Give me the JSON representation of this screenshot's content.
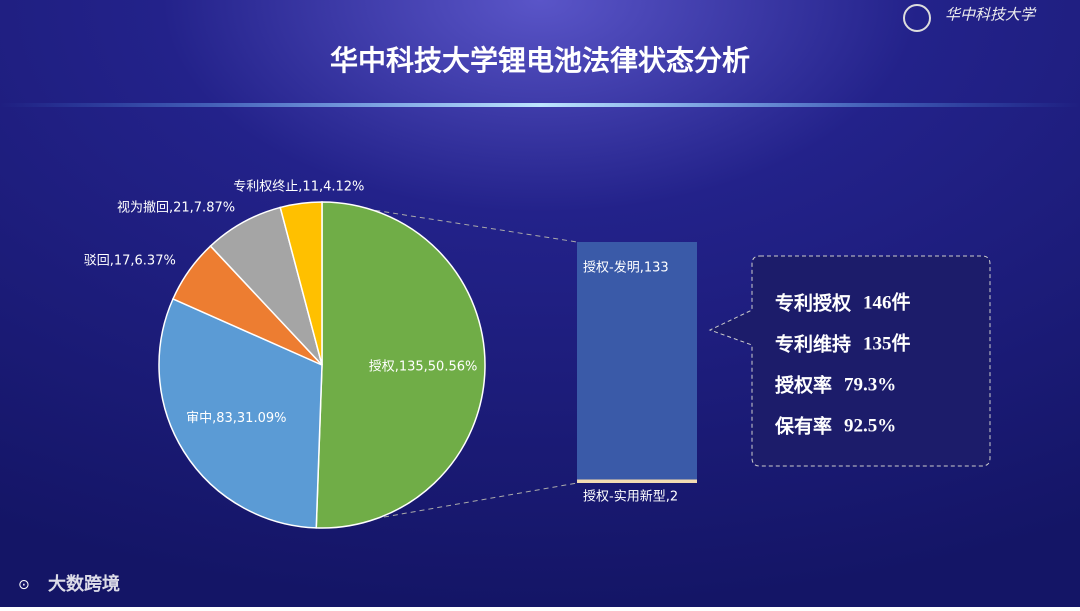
{
  "title": "华中科技大学锂电池法律状态分析",
  "logo": "华中科技大学",
  "watermark": "大数跨境",
  "chart_data": [
    {
      "type": "pie",
      "categories": [
        "授权",
        "审中",
        "驳回",
        "视为撤回",
        "专利权终止"
      ],
      "values": [
        135,
        83,
        17,
        21,
        11
      ],
      "value_labels": [
        "授权,135,50.56%",
        "审中,83,31.09%",
        "驳回,17,6.37%",
        "视为撤回,21,7.87%",
        "专利权终止,11,4.12%"
      ],
      "colors": [
        "#70ad47",
        "#5b9bd5",
        "#ed7d31",
        "#a5a5a5",
        "#ffc000"
      ]
    },
    {
      "type": "bar",
      "categories": [
        "授权-发明",
        "授权-实用新型"
      ],
      "values": [
        133,
        2
      ],
      "value_labels": [
        "授权-发明,133",
        "授权-实用新型,2"
      ],
      "colors": [
        "#3a5aa8",
        "#f2dcb3"
      ]
    }
  ],
  "stats": [
    {
      "label": "专利授权",
      "value": "146件"
    },
    {
      "label": "专利维持",
      "value": "135件"
    },
    {
      "label": "授权率",
      "value": "79.3%"
    },
    {
      "label": "保有率",
      "value": "92.5%"
    }
  ]
}
